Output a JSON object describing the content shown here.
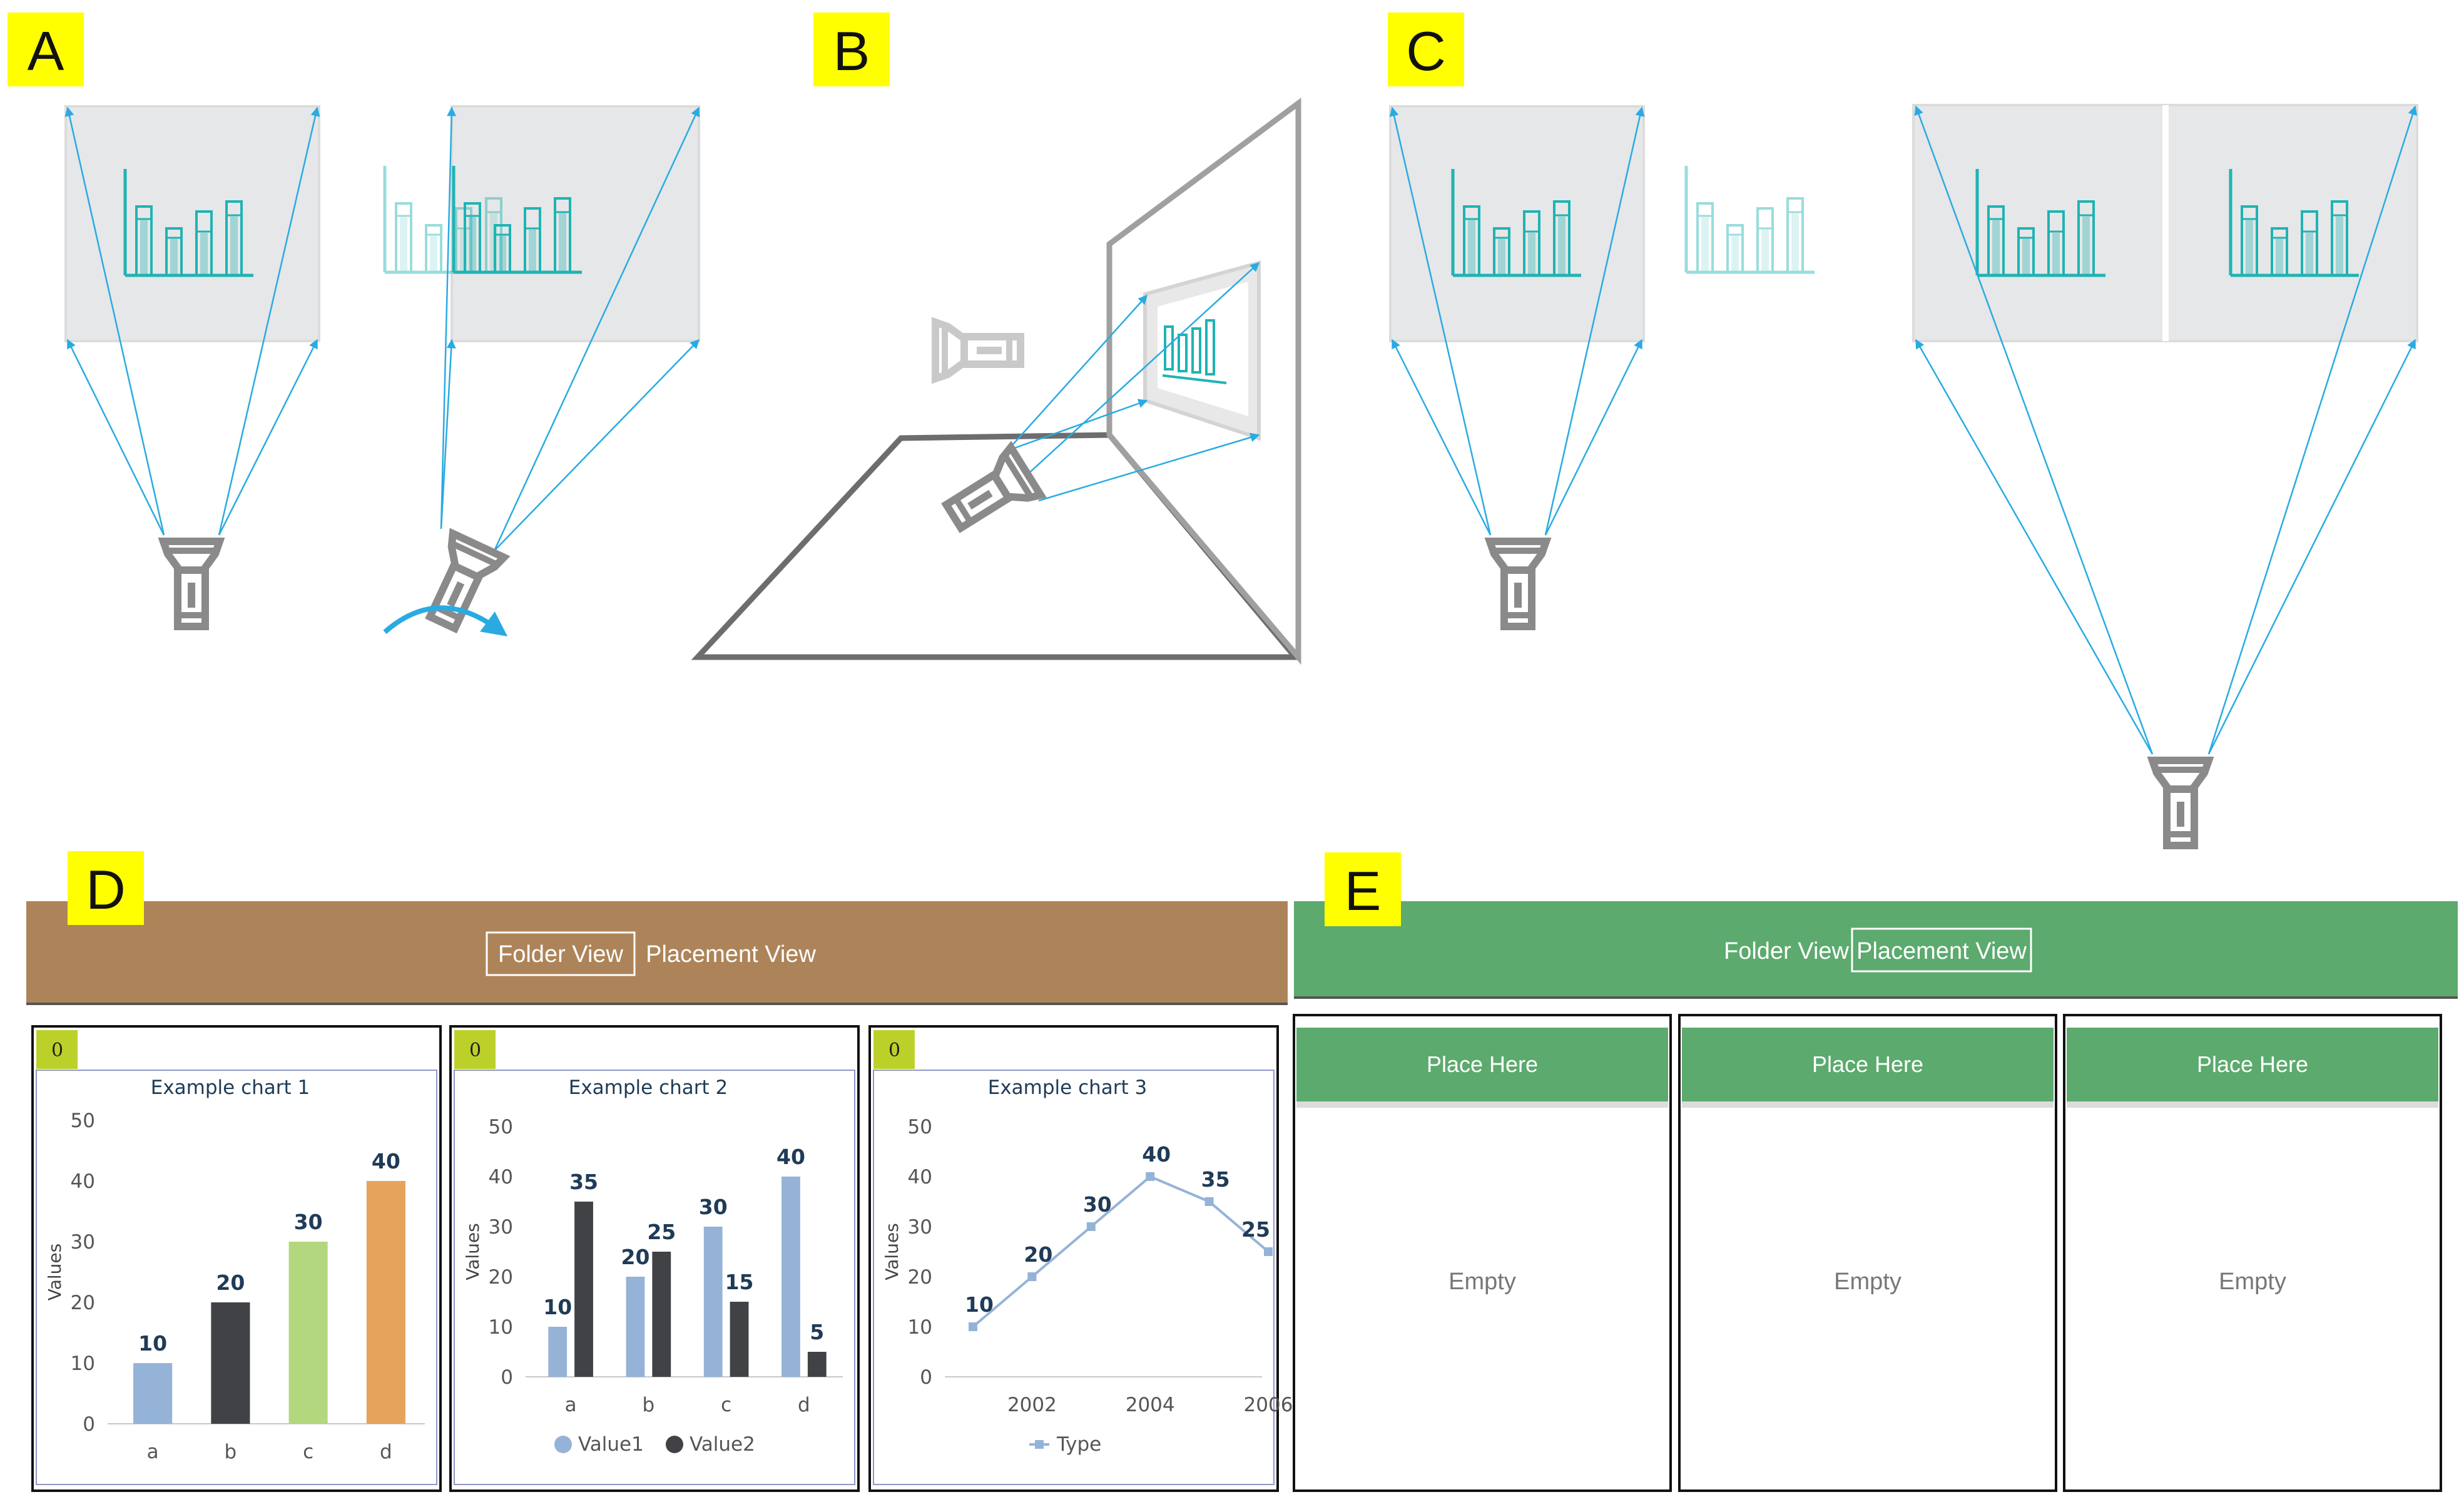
{
  "panels": {
    "a": "A",
    "b": "B",
    "c": "C",
    "d": "D",
    "e": "E"
  },
  "colors": {
    "label_bg": "#ffff00",
    "ray": "#29abe2",
    "projector": "#8a8a8a",
    "screen": "#e6e7e8",
    "chart_teal": "#1fb3b3",
    "toolbar_d": "#ad8459",
    "toolbar_e": "#5caa6e",
    "index_badge": "#bcd02a"
  },
  "toolbar_d": {
    "folder_view": "Folder View",
    "placement_view": "Placement View",
    "active": "folder_view"
  },
  "toolbar_e": {
    "folder_view": "Folder View",
    "placement_view": "Placement View",
    "active": "placement_view"
  },
  "cards": [
    {
      "index": "0",
      "title": "Example chart 1",
      "ylabel": "Values"
    },
    {
      "index": "0",
      "title": "Example chart 2",
      "ylabel": "Values"
    },
    {
      "index": "0",
      "title": "Example chart 3",
      "ylabel": "Values"
    }
  ],
  "slots": [
    {
      "header": "Place Here",
      "body": "Empty"
    },
    {
      "header": "Place Here",
      "body": "Empty"
    },
    {
      "header": "Place Here",
      "body": "Empty"
    }
  ],
  "chart_data": [
    {
      "type": "bar",
      "title": "Example chart 1",
      "ylabel": "Values",
      "categories": [
        "a",
        "b",
        "c",
        "d"
      ],
      "values": [
        10,
        20,
        30,
        40
      ],
      "colors": [
        "#95b3d7",
        "#404246",
        "#b3d77f",
        "#e5a35c"
      ],
      "ylim": [
        0,
        50
      ],
      "yticks": [
        0,
        10,
        20,
        30,
        40,
        50
      ]
    },
    {
      "type": "bar",
      "title": "Example chart 2",
      "ylabel": "Values",
      "categories": [
        "a",
        "b",
        "c",
        "d"
      ],
      "series": [
        {
          "name": "Value1",
          "values": [
            10,
            20,
            30,
            40
          ],
          "color": "#95b3d7"
        },
        {
          "name": "Value2",
          "values": [
            35,
            25,
            15,
            5
          ],
          "color": "#404246"
        }
      ],
      "ylim": [
        0,
        50
      ],
      "yticks": [
        0,
        10,
        20,
        30,
        40,
        50
      ],
      "legend": "bottom"
    },
    {
      "type": "line",
      "title": "Example chart 3",
      "ylabel": "Values",
      "series": [
        {
          "name": "Type",
          "x": [
            2001,
            2002,
            2003,
            2004,
            2005,
            2006
          ],
          "values": [
            10,
            20,
            30,
            40,
            35,
            25
          ],
          "color": "#95b3d7"
        }
      ],
      "xticks": [
        2002,
        2004,
        2006
      ],
      "ylim": [
        0,
        50
      ],
      "yticks": [
        0,
        10,
        20,
        30,
        40,
        50
      ],
      "legend": "bottom"
    }
  ]
}
